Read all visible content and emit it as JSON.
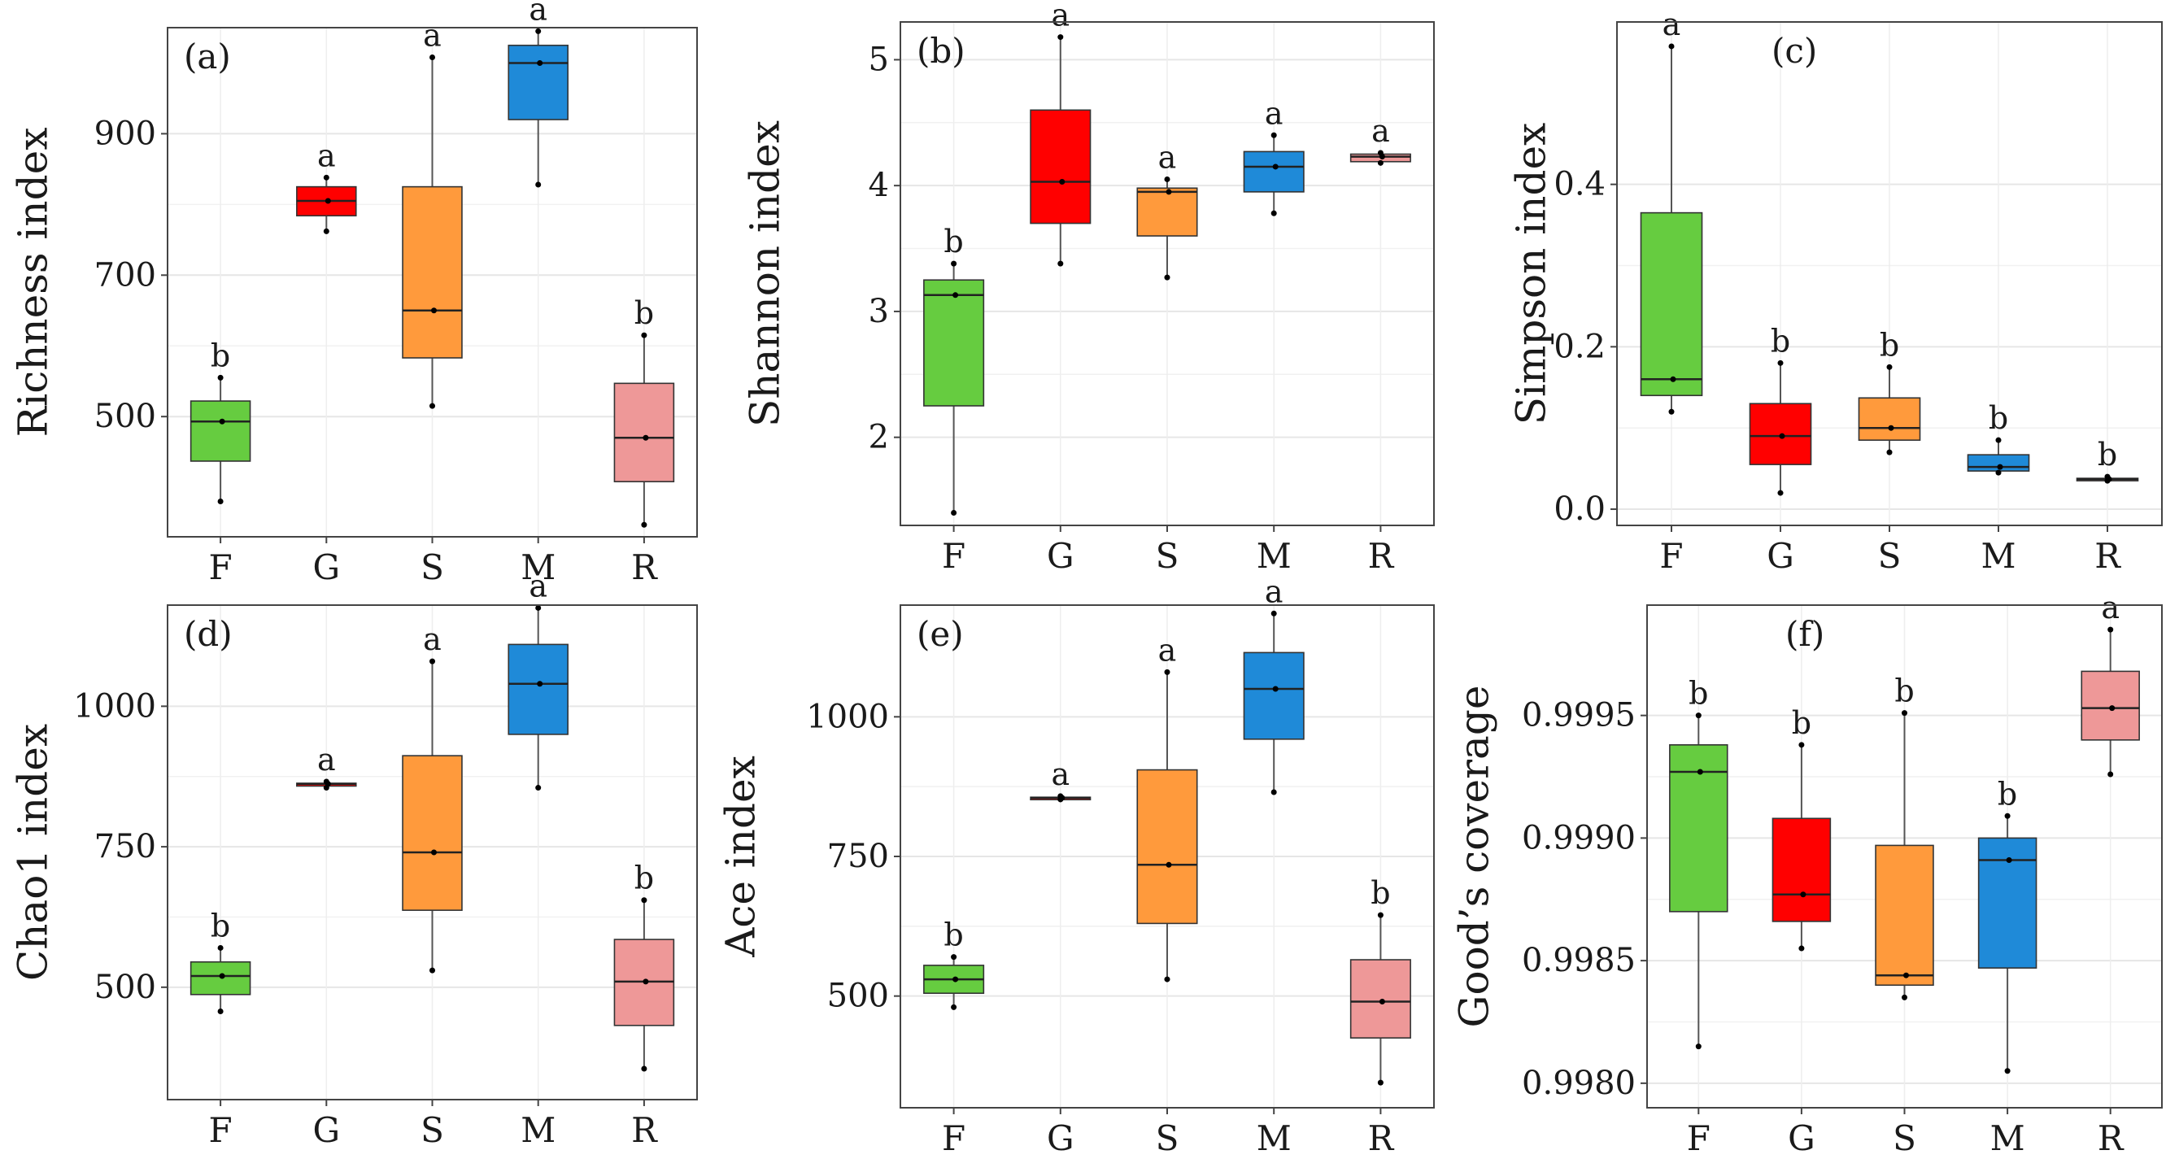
{
  "figure": {
    "categories": [
      "F",
      "G",
      "S",
      "M",
      "R"
    ],
    "colors": {
      "F": "#66cc40",
      "G": "#ff0000",
      "S": "#ff9a3c",
      "M": "#1f8ad8",
      "R": "#ee9898"
    }
  },
  "chart_data": [
    {
      "type": "box",
      "panel": "(a)",
      "ylabel": "Richness index",
      "yticks": [
        500,
        700,
        900
      ],
      "ylim": [
        330,
        1050
      ],
      "grid": true,
      "categories": [
        "F",
        "G",
        "S",
        "M",
        "R"
      ],
      "boxes": [
        {
          "name": "F",
          "min": 380,
          "q1": 437,
          "median": 493,
          "q3": 522,
          "max": 555,
          "sig": "b"
        },
        {
          "name": "G",
          "min": 762,
          "q1": 784,
          "median": 805,
          "q3": 825,
          "max": 838,
          "sig": "a"
        },
        {
          "name": "S",
          "min": 515,
          "q1": 583,
          "median": 650,
          "q3": 825,
          "max": 1008,
          "sig": "a"
        },
        {
          "name": "M",
          "min": 828,
          "q1": 920,
          "median": 1000,
          "q3": 1025,
          "max": 1045,
          "sig": "a"
        },
        {
          "name": "R",
          "min": 347,
          "q1": 408,
          "median": 470,
          "q3": 547,
          "max": 615,
          "sig": "b"
        }
      ]
    },
    {
      "type": "box",
      "panel": "(b)",
      "ylabel": "Shannon index",
      "yticks": [
        2,
        3,
        4,
        5
      ],
      "ylim": [
        1.3,
        5.3
      ],
      "grid": true,
      "categories": [
        "F",
        "G",
        "S",
        "M",
        "R"
      ],
      "boxes": [
        {
          "name": "F",
          "min": 1.4,
          "q1": 2.25,
          "median": 3.13,
          "q3": 3.25,
          "max": 3.38,
          "sig": "b"
        },
        {
          "name": "G",
          "min": 3.38,
          "q1": 3.7,
          "median": 4.03,
          "q3": 4.6,
          "max": 5.18,
          "sig": "a"
        },
        {
          "name": "S",
          "min": 3.27,
          "q1": 3.6,
          "median": 3.95,
          "q3": 3.98,
          "max": 4.05,
          "sig": "a"
        },
        {
          "name": "M",
          "min": 3.78,
          "q1": 3.95,
          "median": 4.15,
          "q3": 4.27,
          "max": 4.4,
          "sig": "a"
        },
        {
          "name": "R",
          "min": 4.18,
          "q1": 4.19,
          "median": 4.23,
          "q3": 4.25,
          "max": 4.26,
          "sig": "a"
        }
      ]
    },
    {
      "type": "box",
      "panel": "(c)",
      "ylabel": "Simpson index",
      "yticks": [
        0.0,
        0.2,
        0.4
      ],
      "ylim": [
        -0.02,
        0.6
      ],
      "grid": true,
      "categories": [
        "F",
        "G",
        "S",
        "M",
        "R"
      ],
      "boxes": [
        {
          "name": "F",
          "min": 0.12,
          "q1": 0.14,
          "median": 0.16,
          "q3": 0.365,
          "max": 0.57,
          "sig": "a"
        },
        {
          "name": "G",
          "min": 0.02,
          "q1": 0.055,
          "median": 0.09,
          "q3": 0.13,
          "max": 0.18,
          "sig": "b"
        },
        {
          "name": "S",
          "min": 0.07,
          "q1": 0.085,
          "median": 0.1,
          "q3": 0.137,
          "max": 0.175,
          "sig": "b"
        },
        {
          "name": "M",
          "min": 0.045,
          "q1": 0.047,
          "median": 0.052,
          "q3": 0.067,
          "max": 0.085,
          "sig": "b"
        },
        {
          "name": "R",
          "min": 0.035,
          "q1": 0.036,
          "median": 0.037,
          "q3": 0.038,
          "max": 0.04,
          "sig": "b"
        }
      ]
    },
    {
      "type": "box",
      "panel": "(d)",
      "ylabel": "Chao1 index",
      "yticks": [
        500,
        750,
        1000
      ],
      "ylim": [
        300,
        1180
      ],
      "grid": true,
      "categories": [
        "F",
        "G",
        "S",
        "M",
        "R"
      ],
      "boxes": [
        {
          "name": "F",
          "min": 457,
          "q1": 487,
          "median": 520,
          "q3": 545,
          "max": 570,
          "sig": "b"
        },
        {
          "name": "G",
          "min": 855,
          "q1": 858,
          "median": 862,
          "q3": 863,
          "max": 866,
          "sig": "a"
        },
        {
          "name": "S",
          "min": 530,
          "q1": 637,
          "median": 740,
          "q3": 912,
          "max": 1080,
          "sig": "a"
        },
        {
          "name": "M",
          "min": 855,
          "q1": 950,
          "median": 1040,
          "q3": 1110,
          "max": 1175,
          "sig": "a"
        },
        {
          "name": "R",
          "min": 355,
          "q1": 432,
          "median": 510,
          "q3": 585,
          "max": 655,
          "sig": "b"
        }
      ]
    },
    {
      "type": "box",
      "panel": "(e)",
      "ylabel": "Ace index",
      "yticks": [
        500,
        750,
        1000
      ],
      "ylim": [
        300,
        1200
      ],
      "grid": true,
      "categories": [
        "F",
        "G",
        "S",
        "M",
        "R"
      ],
      "boxes": [
        {
          "name": "F",
          "min": 480,
          "q1": 505,
          "median": 530,
          "q3": 555,
          "max": 570,
          "sig": "b"
        },
        {
          "name": "G",
          "min": 852,
          "q1": 853,
          "median": 855,
          "q3": 856,
          "max": 858,
          "sig": "a"
        },
        {
          "name": "S",
          "min": 530,
          "q1": 630,
          "median": 735,
          "q3": 905,
          "max": 1080,
          "sig": "a"
        },
        {
          "name": "M",
          "min": 865,
          "q1": 960,
          "median": 1050,
          "q3": 1115,
          "max": 1185,
          "sig": "a"
        },
        {
          "name": "R",
          "min": 345,
          "q1": 425,
          "median": 490,
          "q3": 565,
          "max": 645,
          "sig": "b"
        }
      ]
    },
    {
      "type": "box",
      "panel": "(f)",
      "ylabel": "Good’s coverage",
      "yticks": [
        0.998,
        0.9985,
        0.999,
        0.9995
      ],
      "ytick_labels": [
        "0.9980",
        "0.9985",
        "0.9990",
        "0.9995"
      ],
      "ylim": [
        0.9979,
        0.99995
      ],
      "grid": true,
      "categories": [
        "F",
        "G",
        "S",
        "M",
        "R"
      ],
      "boxes": [
        {
          "name": "F",
          "min": 0.99815,
          "q1": 0.9987,
          "median": 0.99927,
          "q3": 0.99938,
          "max": 0.9995,
          "sig": "b"
        },
        {
          "name": "G",
          "min": 0.99855,
          "q1": 0.99866,
          "median": 0.99877,
          "q3": 0.99908,
          "max": 0.99938,
          "sig": "b"
        },
        {
          "name": "S",
          "min": 0.99835,
          "q1": 0.9984,
          "median": 0.99844,
          "q3": 0.99897,
          "max": 0.99951,
          "sig": "b"
        },
        {
          "name": "M",
          "min": 0.99805,
          "q1": 0.99847,
          "median": 0.99891,
          "q3": 0.999,
          "max": 0.99909,
          "sig": "b"
        },
        {
          "name": "R",
          "min": 0.99926,
          "q1": 0.9994,
          "median": 0.99953,
          "q3": 0.99968,
          "max": 0.99985,
          "sig": "a"
        }
      ]
    }
  ]
}
